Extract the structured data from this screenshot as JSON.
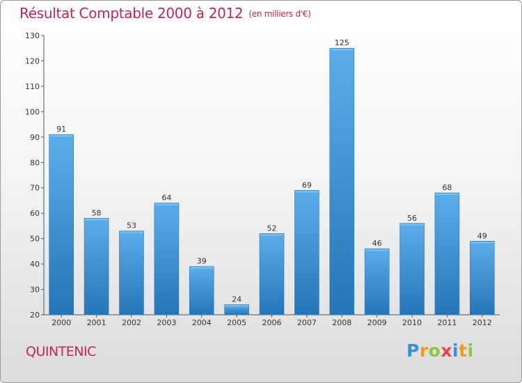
{
  "header": {
    "title": "Résultat Comptable 2000 à 2012",
    "unit": "(en milliers d'€)"
  },
  "commune": "QUINTENIC",
  "logo": {
    "letters": [
      "P",
      "r",
      "o",
      "x",
      "i",
      "t",
      "i"
    ],
    "colors": [
      "#3a8fd8",
      "#f39c12",
      "#8cc63f",
      "#e8454a",
      "#3a8fd8",
      "#f39c12",
      "#8cc63f"
    ]
  },
  "colors": {
    "accent": "#c0245c",
    "bar_top": "#5badea",
    "bar_bottom": "#2576b8"
  },
  "chart_data": {
    "type": "bar",
    "title": "Résultat Comptable 2000 à 2012",
    "subtitle": "(en milliers d'€)",
    "xlabel": "",
    "ylabel": "",
    "categories": [
      "2000",
      "2001",
      "2002",
      "2003",
      "2004",
      "2005",
      "2006",
      "2007",
      "2008",
      "2009",
      "2010",
      "2011",
      "2012"
    ],
    "values": [
      91,
      58,
      53,
      64,
      39,
      24,
      52,
      69,
      125,
      46,
      56,
      68,
      49
    ],
    "ylim": [
      20,
      130
    ],
    "yticks": [
      20,
      30,
      40,
      50,
      60,
      70,
      80,
      90,
      100,
      110,
      120,
      130
    ],
    "grid": false,
    "legend": "none"
  }
}
